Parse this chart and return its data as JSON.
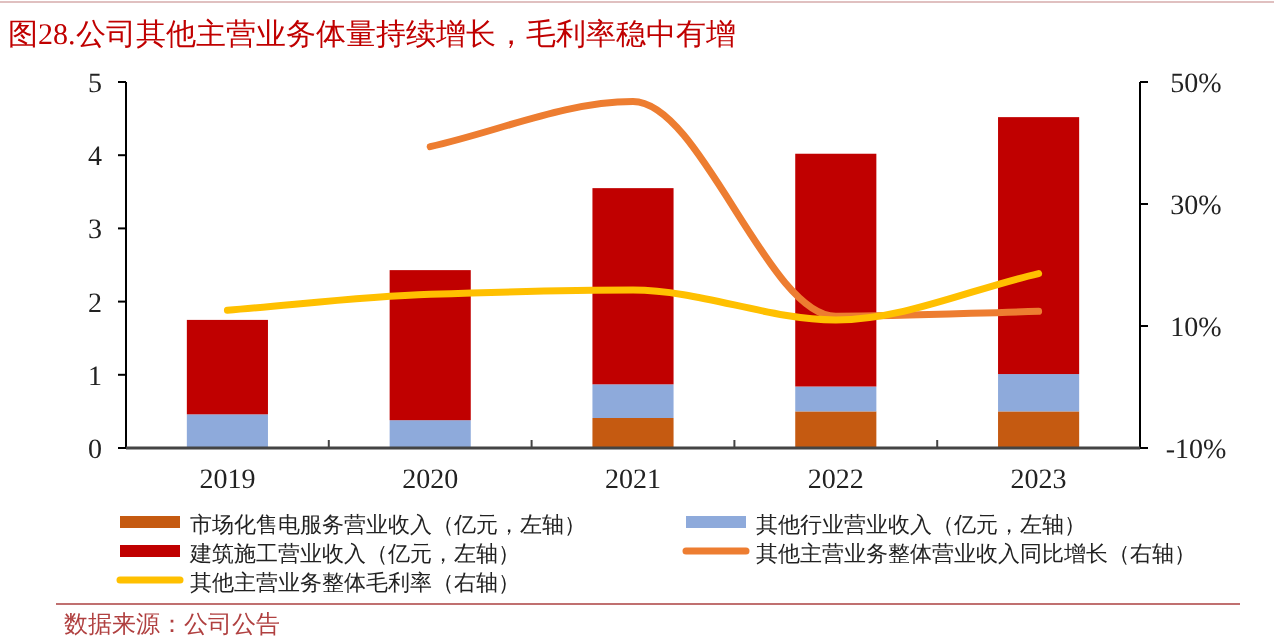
{
  "chart_data": {
    "type": "bar",
    "title": "图28.公司其他主营业务体量持续增长，毛利率稳中有增",
    "categories": [
      "2019",
      "2020",
      "2021",
      "2022",
      "2023"
    ],
    "stacked": true,
    "series": [
      {
        "name": "市场化售电服务营业收入（亿元，左轴）",
        "color": "#c55a11",
        "values": [
          0,
          0,
          0.41,
          0.5,
          0.5
        ]
      },
      {
        "name": "其他行业营业收入（亿元，左轴）",
        "color": "#8eaadb",
        "values": [
          0.46,
          0.38,
          0.46,
          0.34,
          0.51
        ]
      },
      {
        "name": "建筑施工营业收入（亿元，左轴）",
        "color": "#c00000",
        "values": [
          1.29,
          2.05,
          2.68,
          3.18,
          3.51
        ]
      },
      {
        "name": "其他主营业务整体营业收入同比增长（右轴）",
        "type": "line",
        "axis": "y2",
        "color": "#ed7d31",
        "values": [
          null,
          39.4,
          46.8,
          11.6,
          12.4
        ]
      },
      {
        "name": "其他主营业务整体毛利率（右轴）",
        "type": "line",
        "axis": "y2",
        "color": "#ffc000",
        "values": [
          12.6,
          15.2,
          15.9,
          11.0,
          18.6
        ]
      }
    ],
    "ylim": [
      0,
      5
    ],
    "yticks": [
      0,
      1,
      2,
      3,
      4,
      5
    ],
    "y2lim": [
      -10,
      50
    ],
    "y2ticks": [
      {
        "value": -10,
        "label": "-10%"
      },
      {
        "value": 10,
        "label": "10%"
      },
      {
        "value": 30,
        "label": "30%"
      },
      {
        "value": 50,
        "label": "50%"
      }
    ],
    "grid": false,
    "legend": "bottom",
    "marker": "none",
    "line_style": "solid",
    "annotations": [
      "数据来源：公司公告"
    ]
  }
}
